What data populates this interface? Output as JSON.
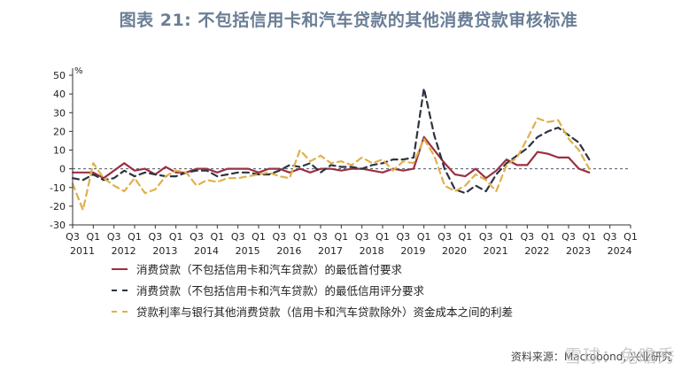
{
  "title": "图表 21: 不包括信用卡和汽车贷款的其他消费贷款审核标准",
  "source": "资料来源：Macrobond, 兴业研究",
  "watermark": "雪球：兔瞻秀",
  "colors": {
    "s1": "#9b3042",
    "s2": "#2c3340",
    "s3": "#e0b04a"
  },
  "chart_data": {
    "type": "line",
    "ylabel": "%",
    "ylim": [
      -30,
      50
    ],
    "yticks": [
      -30,
      -20,
      -10,
      0,
      10,
      20,
      30,
      40,
      50
    ],
    "x_start": "2011Q3",
    "x_end": "2025Q1",
    "quarter_ticks": [
      "Q3",
      "Q1",
      "Q3",
      "Q1",
      "Q3",
      "Q1",
      "Q3",
      "Q1",
      "Q3",
      "Q1",
      "Q3",
      "Q1",
      "Q3",
      "Q1",
      "Q3",
      "Q1",
      "Q3",
      "Q1",
      "Q3",
      "Q1",
      "Q3",
      "Q1",
      "Q3",
      "Q1",
      "Q3",
      "Q1",
      "Q3",
      "Q1"
    ],
    "year_labels": [
      "2011",
      "2012",
      "2013",
      "2014",
      "2015",
      "2016",
      "2017",
      "2018",
      "2019",
      "2020",
      "2021",
      "2022",
      "2023",
      "2024"
    ],
    "reference_line": 0,
    "series": [
      {
        "name": "消费贷款（不包括信用卡和汽车贷款）的最低首付要求",
        "values": [
          -2,
          -2,
          -2,
          -5,
          -1,
          3,
          -1,
          0,
          -3,
          1,
          -2,
          -2,
          0,
          0,
          -2,
          0,
          0,
          0,
          -2,
          0,
          0,
          -2,
          0,
          -2,
          0,
          0,
          -1,
          0,
          0,
          -1,
          -2,
          0,
          -1,
          0,
          17,
          10,
          3,
          -3,
          -4,
          0,
          -5,
          -1,
          5,
          2,
          2,
          9,
          8,
          6,
          6,
          0,
          -2
        ]
      },
      {
        "name": "消费贷款（不包括信用卡和汽车贷款）的最低信用评分要求",
        "values": [
          -5,
          -6,
          -3,
          -6,
          -5,
          -1,
          -4,
          -2,
          -3,
          -4,
          -4,
          -2,
          -1,
          -1,
          -4,
          -3,
          -2,
          -2,
          -3,
          -3,
          -1,
          2,
          1,
          3,
          -2,
          2,
          1,
          1,
          0,
          2,
          3,
          5,
          5,
          6,
          43,
          18,
          0,
          -11,
          -13,
          -9,
          -12,
          -3,
          3,
          7,
          11,
          17,
          20,
          22,
          18,
          14,
          5
        ]
      },
      {
        "name": "贷款利率与银行其他消费贷款（信用卡和汽车贷款除外）资金成本之间的利差",
        "values": [
          -8,
          -22,
          3,
          -5,
          -9,
          -12,
          -5,
          -13,
          -11,
          -4,
          -1,
          -2,
          -9,
          -6,
          -7,
          -5,
          -5,
          -4,
          -3,
          -2,
          -4,
          -5,
          10,
          4,
          7,
          3,
          4,
          2,
          6,
          3,
          5,
          -1,
          4,
          3,
          16,
          7,
          -9,
          -12,
          -9,
          -3,
          -6,
          -12,
          2,
          6,
          16,
          27,
          25,
          26,
          16,
          10,
          0
        ]
      }
    ]
  }
}
